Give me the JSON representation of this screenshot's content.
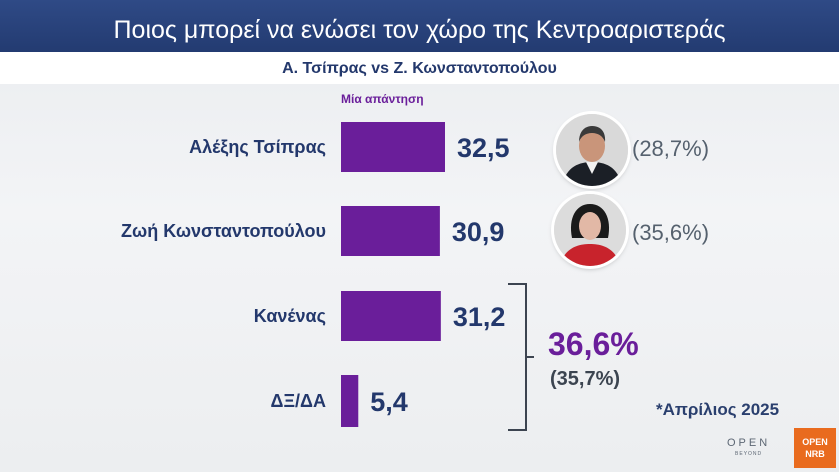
{
  "header": {
    "title": "Ποιος  μπορεί να ενώσει τον χώρο της Κεντροαριστεράς",
    "subtitle": "Α. Τσίπρας vs Ζ. Κωνσταντοπούλου"
  },
  "chart_data": {
    "type": "bar",
    "orientation": "horizontal",
    "title": "Ποιος  μπορεί να ενώσει τον χώρο της Κεντροαριστεράς",
    "subtitle": "Α. Τσίπρας vs Ζ. Κωνσταντοπούλου",
    "series_label": "Μία απάντηση",
    "categories": [
      "Αλέξης Τσίπρας",
      "Ζωή Κωνσταντοπούλου",
      "Κανένας",
      "ΔΞ/ΔΑ"
    ],
    "values": [
      32.5,
      30.9,
      31.2,
      5.4
    ],
    "value_labels": [
      "32,5",
      "30,9",
      "31,2",
      "5,4"
    ],
    "previous_labels": [
      "(28,7%)",
      "(35,6%)"
    ],
    "bar_color": "#6a1e9a",
    "group_bracket": {
      "categories": [
        "Κανένας",
        "ΔΞ/ΔΑ"
      ],
      "total_label": "36,6%",
      "previous_label": "(35,7%)"
    },
    "footnote": "*Απρίλιος 2025",
    "grid": false,
    "legend": "none"
  },
  "avatars": [
    {
      "icon": "man-portrait-icon"
    },
    {
      "icon": "woman-portrait-icon"
    }
  ],
  "branding": {
    "logo_text": "OPEN",
    "logo_sub": "BEYOND",
    "corner_text_1": "OPEN",
    "corner_text_2": "NRB"
  },
  "colors": {
    "title_bg": "#233b71",
    "text_navy": "#23386c",
    "accent_purple": "#6a1e9a"
  }
}
